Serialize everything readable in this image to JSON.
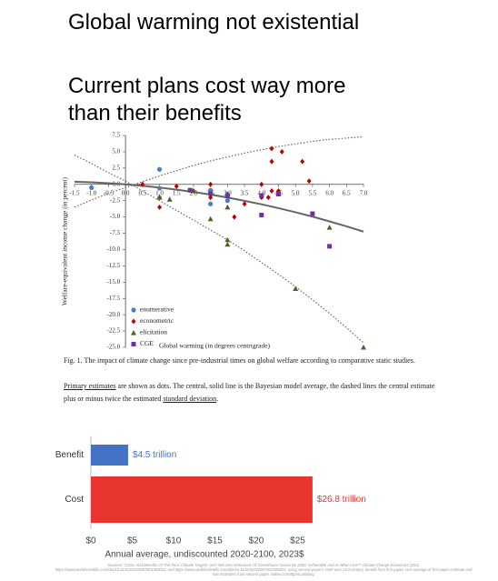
{
  "headline": {
    "title": "Global warming not existential",
    "subtitle_lines": [
      "Current plans cost way more",
      "than their benefits"
    ]
  },
  "chart_data": [
    {
      "type": "scatter",
      "xlabel": "Global warming (in degrees centrigrade)",
      "ylabel": "Welfare-equivalent income change (in percent)",
      "xlim": [
        -1.5,
        7.0
      ],
      "ylim": [
        -25,
        7.5
      ],
      "xticks": [
        -1.5,
        {
          "value": -1,
          "label": "-1.0"
        },
        -0.5,
        {
          "value": 0,
          "label": "0.0"
        },
        0.5,
        {
          "value": 1,
          "label": "1.0"
        },
        1.5,
        {
          "value": 2,
          "label": "2.0"
        },
        2.5,
        {
          "value": 3,
          "label": "3.0"
        },
        3.5,
        {
          "value": 4,
          "label": "4.0"
        },
        4.5,
        {
          "value": 5,
          "label": "5.0"
        },
        5.5,
        {
          "value": 6,
          "label": "6.0"
        },
        6.5,
        {
          "value": 7,
          "label": "7.0"
        }
      ],
      "yticks": [
        7.5,
        {
          "value": 5,
          "label": "5.0"
        },
        2.5,
        {
          "value": 0,
          "label": "0.0"
        },
        -2.5,
        {
          "value": -5,
          "label": "-5.0"
        },
        -7.5,
        {
          "value": -10,
          "label": "-10.0"
        },
        -12.5,
        {
          "value": -15,
          "label": "-15.0"
        },
        -17.5,
        {
          "value": -20,
          "label": "-20.0"
        },
        -22.5,
        {
          "value": -25,
          "label": "-25.0"
        }
      ],
      "legend": "lower left",
      "series": [
        {
          "name": "enumerative",
          "color": "#4a7ec8",
          "marker": "circle",
          "x": [
            -1.0,
            1.0,
            1.0,
            2.5,
            2.5,
            2.5,
            3.0,
            3.0
          ],
          "values": [
            -0.5,
            2.3,
            -0.6,
            -0.9,
            -1.5,
            -3.0,
            -1.5,
            -2.5
          ]
        },
        {
          "name": "econometric",
          "color": "#c00000",
          "marker": "diamond",
          "x": [
            0.5,
            1.0,
            1.0,
            1.5,
            1.9,
            2.0,
            2.5,
            2.5,
            3.2,
            3.5,
            4.0,
            4.0,
            4.2,
            4.3,
            4.3,
            4.3,
            4.5,
            4.6,
            5.2,
            5.4
          ],
          "values": [
            0,
            -3.5,
            -2.0,
            -0.3,
            -0.9,
            -1.0,
            0,
            -2.0,
            -5.0,
            -3.0,
            0,
            -2.0,
            -2.0,
            5.5,
            3.5,
            -1.0,
            -1.0,
            5.0,
            3.5,
            0.5
          ]
        },
        {
          "name": "elicitation",
          "color": "#4f6228",
          "marker": "triangle",
          "x": [
            1.0,
            1.3,
            2.0,
            2.5,
            3.0,
            3.0,
            3.0,
            3.0,
            5.0,
            6.0,
            7.0
          ],
          "values": [
            -2.0,
            -2.3,
            -1.0,
            -5.3,
            -1.5,
            -3.5,
            -8.5,
            -9.2,
            -16.0,
            -6.6,
            -25.0
          ]
        },
        {
          "name": "CGE",
          "color": "#7030a0",
          "marker": "square",
          "x": [
            1.9,
            2.5,
            3.0,
            4.0,
            4.0,
            4.5,
            5.5,
            6.0
          ],
          "values": [
            -0.9,
            -1.4,
            -1.8,
            -1.7,
            -4.7,
            -1.5,
            -4.5,
            -9.5
          ]
        }
      ],
      "curves": [
        {
          "line_style": "solid",
          "color": "#666666",
          "x": [
            -1.5,
            -1,
            -0.5,
            0,
            0.5,
            1,
            1.5,
            2,
            2.5,
            3,
            3.5,
            4,
            4.5,
            5,
            5.5,
            6,
            6.5,
            7
          ],
          "values": [
            0.4,
            0.31,
            0.18,
            0,
            -0.22,
            -0.49,
            -0.81,
            -1.17,
            -1.57,
            -2.02,
            -2.52,
            -3.06,
            -3.65,
            -4.28,
            -4.95,
            -5.68,
            -6.44,
            -7.25
          ]
        },
        {
          "line_style": "dotted",
          "color": "#666666",
          "x": [
            -1.5,
            -1,
            -0.5,
            0,
            0.5,
            1,
            1.5,
            2,
            2.5,
            3,
            3.5,
            4,
            4.5,
            5,
            5.5,
            6,
            6.5,
            7
          ],
          "values": [
            -3.5,
            -2.4,
            -1.4,
            -0.5,
            0.4,
            1.3,
            2.1,
            2.9,
            3.6,
            4.2,
            4.8,
            5.3,
            5.8,
            6.2,
            6.6,
            6.9,
            7.1,
            7.3
          ]
        },
        {
          "line_style": "dotted",
          "color": "#666666",
          "x": [
            -1.5,
            -1,
            -0.5,
            0,
            0.5,
            1,
            1.5,
            2,
            2.5,
            3,
            3.5,
            4,
            4.5,
            5,
            5.5,
            6,
            6.5,
            7
          ],
          "values": [
            4.5,
            3.2,
            1.8,
            0.5,
            -1.0,
            -2.5,
            -4.0,
            -5.5,
            -7.0,
            -8.5,
            -10.2,
            -12.0,
            -13.8,
            -15.7,
            -17.7,
            -19.8,
            -22.0,
            -24.3
          ]
        }
      ]
    },
    {
      "type": "bar",
      "orientation": "horizontal",
      "xlabel": "Annual average, undiscounted 2020-2100, 2023$",
      "categories": [
        "Benefit",
        "Cost"
      ],
      "xlim": [
        0,
        27
      ],
      "xticks": [
        {
          "value": 0,
          "label": "$0"
        },
        {
          "value": 5,
          "label": "$5"
        },
        {
          "value": 10,
          "label": "$10"
        },
        {
          "value": 15,
          "label": "$15"
        },
        {
          "value": 20,
          "label": "$20"
        },
        {
          "value": 25,
          "label": "$25"
        }
      ],
      "series": [
        {
          "colors": [
            "#4472c4",
            "#e8352e"
          ],
          "values": [
            4.5,
            26.8
          ],
          "value_labels": [
            "$4.5 trillion",
            "$26.8 trillion"
          ]
        }
      ]
    }
  ],
  "caption": {
    "figure": "Fig. 1. The impact of climate change since pre-industrial times on global welfare according to comparative static studies.",
    "notes": [
      {
        "text": "Primary estimates",
        "underline": true
      },
      {
        "text": " are shown as dots. The central, solid line is the Bayesian model average, the dashed lines the central estimate plus or minus twice the estimated ",
        "underline": false
      },
      {
        "text": "standard deviation",
        "underline": true
      },
      {
        "text": ".",
        "underline": false
      }
    ]
  },
  "source": "Sources: \"Costs And Benefits Of The Paris Climate Targets\" and \"Net Zero Emissions Of Greenhouse Gases By 2050: Achievable And At What Cost?\" Climate Change Economics 2023, https://www.worldscientific.com/doi/10.1142/S2010007823400031, and https://www.worldscientific.com/doi/10.1142/S2010007823400029, using second-paper's GDP over 21st century, benefit from first paper, cost average of first paper estimate and two estimates from second paper. twitter.com/BjornLomborg"
}
